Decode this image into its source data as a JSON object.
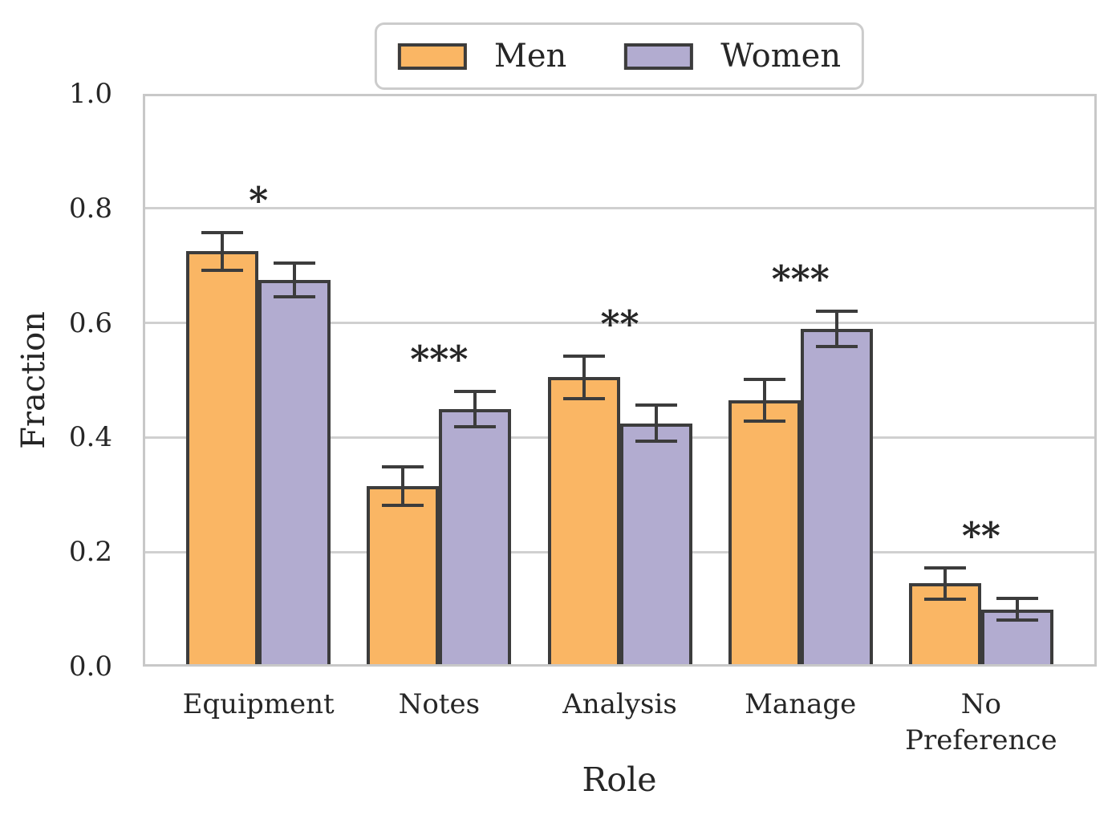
{
  "legend": {
    "items": [
      {
        "label": "Men",
        "color": "#FAB664"
      },
      {
        "label": "Women",
        "color": "#B2ACD0"
      }
    ]
  },
  "chart_data": {
    "type": "bar",
    "title": "",
    "xlabel": "Role",
    "ylabel": "Fraction",
    "ylim": [
      0.0,
      1.0
    ],
    "yticks": [
      {
        "value": 0.0,
        "label": "0.0"
      },
      {
        "value": 0.2,
        "label": "0.2"
      },
      {
        "value": 0.4,
        "label": "0.4"
      },
      {
        "value": 0.6,
        "label": "0.6"
      },
      {
        "value": 0.8,
        "label": "0.8"
      },
      {
        "value": 1.0,
        "label": "1.0"
      }
    ],
    "categories": [
      "Equipment",
      "Notes",
      "Analysis",
      "Manage",
      "No\nPreference"
    ],
    "series": [
      {
        "name": "Men",
        "color": "#FAB664",
        "values": [
          0.725,
          0.315,
          0.505,
          0.465,
          0.145
        ],
        "errors": [
          0.033,
          0.034,
          0.037,
          0.036,
          0.027
        ]
      },
      {
        "name": "Women",
        "color": "#B2ACD0",
        "values": [
          0.675,
          0.45,
          0.425,
          0.59,
          0.1
        ],
        "errors": [
          0.03,
          0.031,
          0.031,
          0.031,
          0.019
        ]
      }
    ],
    "significance": [
      "*",
      "***",
      "**",
      "***",
      "**"
    ],
    "significance_offset": 0.07,
    "grid": true,
    "legend_position": "top-center",
    "bar_edge_color": "#3C3C3C",
    "error_bar_color": "#3C3C3C",
    "grid_color": "#D0D0D0",
    "spine_color": "#C8C8C8",
    "text_color": "#262626"
  }
}
